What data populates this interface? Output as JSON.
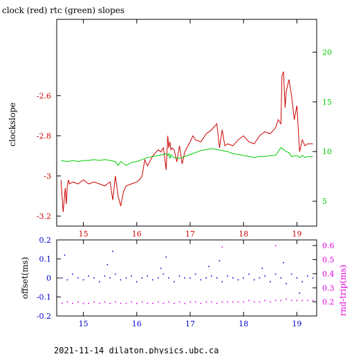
{
  "page": {
    "title": "clock (red) rtc (green) slopes",
    "footer": "2021-11-14  dilaton.physics.ubc.ca"
  },
  "colors": {
    "clock": "#cc0000",
    "rtc": "#00cc00",
    "offset": "#0000cc",
    "rndtrip": "#dd00dd",
    "frame": "#000000"
  },
  "chart_data": [
    {
      "type": "line",
      "title": "clock (red) rtc (green) slopes",
      "ylabel": "clockslope",
      "x_range": [
        14.5,
        19.37
      ],
      "x_ticks": [
        15,
        16,
        17,
        18,
        19
      ],
      "y_left": {
        "ylim": [
          -3.25,
          -2.22
        ],
        "ticks": [
          -3.2,
          -3,
          -2.8,
          -2.6
        ],
        "tick_labels": [
          "-3.2",
          "-3",
          "-2.8",
          "-2.6"
        ]
      },
      "y_right": {
        "ylim": [
          2.5,
          23.3
        ],
        "ticks": [
          5,
          10,
          15,
          20
        ],
        "tick_labels": [
          "5",
          "10",
          "15",
          "20"
        ]
      },
      "series": [
        {
          "axis": "left",
          "x": [
            14.58,
            14.62,
            14.66,
            14.68,
            14.7,
            14.72,
            14.74,
            14.8,
            14.9,
            15.0,
            15.1,
            15.2,
            15.3,
            15.4,
            15.5,
            15.55,
            15.6,
            15.65,
            15.7,
            15.75,
            15.8,
            15.9,
            16.0,
            16.05,
            16.1,
            16.15,
            16.2,
            16.3,
            16.4,
            16.45,
            16.5,
            16.55,
            16.58,
            16.6,
            16.62,
            16.64,
            16.66,
            16.7,
            16.75,
            16.8,
            16.85,
            16.9,
            17.0,
            17.05,
            17.1,
            17.2,
            17.3,
            17.4,
            17.5,
            17.55,
            17.6,
            17.65,
            17.7,
            17.8,
            17.9,
            18.0,
            18.1,
            18.2,
            18.3,
            18.4,
            18.5,
            18.6,
            18.65,
            18.7,
            18.72,
            18.75,
            18.78,
            18.8,
            18.85,
            18.9,
            18.95,
            19.0,
            19.05,
            19.1,
            19.15,
            19.2,
            19.3
          ],
          "y": [
            -3.02,
            -3.18,
            -3.06,
            -3.14,
            -3.05,
            -3.02,
            -3.04,
            -3.03,
            -3.04,
            -3.02,
            -3.04,
            -3.03,
            -3.04,
            -3.05,
            -3.03,
            -3.12,
            -3.0,
            -3.1,
            -3.15,
            -3.08,
            -3.05,
            -3.04,
            -3.03,
            -3.02,
            -3.0,
            -2.92,
            -2.95,
            -2.9,
            -2.87,
            -2.88,
            -2.86,
            -2.97,
            -2.8,
            -2.86,
            -2.83,
            -2.87,
            -2.86,
            -2.87,
            -2.93,
            -2.85,
            -2.94,
            -2.88,
            -2.83,
            -2.8,
            -2.82,
            -2.83,
            -2.79,
            -2.77,
            -2.74,
            -2.86,
            -2.77,
            -2.85,
            -2.84,
            -2.85,
            -2.82,
            -2.8,
            -2.83,
            -2.84,
            -2.8,
            -2.78,
            -2.79,
            -2.76,
            -2.72,
            -2.74,
            -2.5,
            -2.48,
            -2.66,
            -2.58,
            -2.52,
            -2.6,
            -2.72,
            -2.65,
            -2.88,
            -2.82,
            -2.85,
            -2.84,
            -2.84
          ]
        },
        {
          "axis": "right",
          "x": [
            14.58,
            14.7,
            14.8,
            14.9,
            15.0,
            15.1,
            15.2,
            15.3,
            15.4,
            15.5,
            15.6,
            15.65,
            15.7,
            15.75,
            15.8,
            15.9,
            16.0,
            16.1,
            16.2,
            16.3,
            16.4,
            16.5,
            16.55,
            16.58,
            16.6,
            16.62,
            16.64,
            16.66,
            16.7,
            16.8,
            16.9,
            17.0,
            17.1,
            17.2,
            17.3,
            17.4,
            17.5,
            17.6,
            17.7,
            17.8,
            17.9,
            18.0,
            18.1,
            18.2,
            18.3,
            18.4,
            18.5,
            18.6,
            18.7,
            18.75,
            18.8,
            18.85,
            18.9,
            19.0,
            19.05,
            19.08,
            19.1,
            19.15,
            19.2,
            19.3
          ],
          "y": [
            9.1,
            9.0,
            9.1,
            9.0,
            9.1,
            9.1,
            9.2,
            9.1,
            9.2,
            9.1,
            9.0,
            8.6,
            9.0,
            8.8,
            8.6,
            8.9,
            9.0,
            9.2,
            9.4,
            9.5,
            9.6,
            9.7,
            9.8,
            9.6,
            9.8,
            9.3,
            9.7,
            9.5,
            9.4,
            9.3,
            9.5,
            9.7,
            9.9,
            10.1,
            10.2,
            10.3,
            10.2,
            10.1,
            10.0,
            9.8,
            9.7,
            9.6,
            9.5,
            9.4,
            9.5,
            9.5,
            9.6,
            9.6,
            10.4,
            10.2,
            10.0,
            9.9,
            9.5,
            9.6,
            9.4,
            9.5,
            9.6,
            9.4,
            9.5,
            9.5
          ]
        }
      ]
    },
    {
      "type": "scatter",
      "ylabel_left": "offset(ms)",
      "ylabel_right": "rnd-trip(ms)",
      "x_range": [
        14.5,
        19.37
      ],
      "x_ticks": [
        15,
        16,
        17,
        18,
        19
      ],
      "y_left": {
        "ylim": [
          -0.2,
          0.2
        ],
        "ticks": [
          -0.2,
          -0.1,
          0,
          0.1,
          0.2
        ],
        "tick_labels": [
          "-0.2",
          "-0.1",
          "0",
          "0.1",
          "0.2"
        ]
      },
      "y_right": {
        "ylim": [
          0.1,
          0.64
        ],
        "ticks": [
          0.2,
          0.3,
          0.4,
          0.5,
          0.6
        ],
        "tick_labels": [
          "0.2",
          "0.3",
          "0.4",
          "0.5",
          "0.6"
        ]
      },
      "series": [
        {
          "axis": "left",
          "x": [
            14.6,
            14.7,
            14.8,
            14.9,
            15.0,
            15.1,
            15.2,
            15.3,
            15.4,
            15.5,
            15.6,
            15.7,
            15.8,
            15.9,
            16.0,
            16.1,
            16.2,
            16.3,
            16.4,
            16.5,
            16.6,
            16.7,
            16.8,
            16.9,
            17.0,
            17.1,
            17.2,
            17.3,
            17.4,
            17.5,
            17.6,
            17.7,
            17.8,
            17.9,
            18.0,
            18.1,
            18.2,
            18.3,
            18.4,
            18.5,
            18.6,
            18.7,
            18.8,
            18.9,
            19.0,
            19.1,
            19.2,
            19.3,
            14.65,
            15.45,
            15.55,
            16.45,
            16.55,
            17.35,
            17.55,
            18.35,
            18.75,
            19.05
          ],
          "y": [
            0.0,
            -0.01,
            0.02,
            0.0,
            -0.01,
            0.01,
            0.0,
            -0.02,
            0.01,
            0.0,
            0.02,
            -0.01,
            0.0,
            0.01,
            -0.02,
            0.0,
            0.01,
            -0.01,
            0.0,
            0.02,
            0.0,
            -0.02,
            0.01,
            0.0,
            0.0,
            0.02,
            -0.01,
            0.0,
            0.01,
            0.0,
            -0.02,
            0.01,
            0.0,
            -0.01,
            0.0,
            0.02,
            -0.01,
            0.0,
            0.01,
            -0.02,
            0.02,
            0.0,
            -0.03,
            0.02,
            0.0,
            -0.02,
            0.01,
            0.0,
            0.12,
            0.07,
            0.14,
            0.05,
            0.11,
            0.06,
            0.09,
            0.05,
            0.08,
            -0.08
          ]
        },
        {
          "axis": "right",
          "x": [
            14.6,
            14.7,
            14.8,
            14.9,
            15.0,
            15.1,
            15.2,
            15.3,
            15.4,
            15.5,
            15.6,
            15.7,
            15.8,
            15.9,
            16.0,
            16.1,
            16.2,
            16.3,
            16.4,
            16.5,
            16.6,
            16.7,
            16.8,
            16.9,
            17.0,
            17.1,
            17.2,
            17.3,
            17.4,
            17.5,
            17.6,
            17.7,
            17.8,
            17.9,
            18.0,
            18.1,
            18.2,
            18.3,
            18.4,
            18.5,
            18.6,
            18.7,
            18.8,
            18.9,
            19.0,
            19.1,
            19.2,
            19.3,
            17.6,
            18.6
          ],
          "y": [
            0.19,
            0.2,
            0.19,
            0.2,
            0.19,
            0.19,
            0.2,
            0.19,
            0.2,
            0.19,
            0.2,
            0.19,
            0.19,
            0.2,
            0.19,
            0.2,
            0.19,
            0.19,
            0.2,
            0.19,
            0.2,
            0.19,
            0.2,
            0.19,
            0.2,
            0.2,
            0.19,
            0.2,
            0.2,
            0.19,
            0.2,
            0.2,
            0.2,
            0.2,
            0.2,
            0.21,
            0.2,
            0.2,
            0.21,
            0.2,
            0.21,
            0.21,
            0.22,
            0.21,
            0.21,
            0.21,
            0.21,
            0.21,
            0.59,
            0.6
          ]
        }
      ]
    }
  ]
}
